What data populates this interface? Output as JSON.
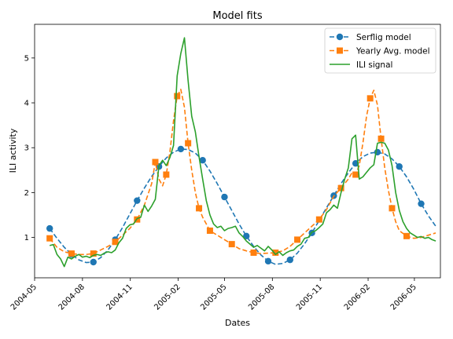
{
  "chart_data": {
    "type": "line",
    "title": "Model fits",
    "xlabel": "Dates",
    "ylabel": "ILI activity",
    "x_ticks": [
      "2004-05",
      "2004-08",
      "2004-11",
      "2005-02",
      "2005-05",
      "2005-08",
      "2005-11",
      "2006-02",
      "2006-05"
    ],
    "x_range": [
      "2004-05-01",
      "2006-06-20"
    ],
    "ylim": [
      0.1,
      5.75
    ],
    "y_ticks": [
      1,
      2,
      3,
      4,
      5
    ],
    "legend_position": "top-right",
    "grid": false,
    "series": [
      {
        "name": "Serflig model",
        "color": "#1f77b4",
        "style": "dashed",
        "marker": "circle",
        "x": [
          "2004-05-30",
          "2004-06-13",
          "2004-06-27",
          "2004-07-11",
          "2004-07-25",
          "2004-08-08",
          "2004-08-22",
          "2004-09-05",
          "2004-09-19",
          "2004-10-03",
          "2004-10-17",
          "2004-10-31",
          "2004-11-14",
          "2004-11-28",
          "2004-12-12",
          "2004-12-26",
          "2005-01-09",
          "2005-01-23",
          "2005-02-06",
          "2005-02-20",
          "2005-03-06",
          "2005-03-20",
          "2005-04-03",
          "2005-04-17",
          "2005-05-01",
          "2005-05-15",
          "2005-05-29",
          "2005-06-12",
          "2005-06-26",
          "2005-07-10",
          "2005-07-24",
          "2005-08-07",
          "2005-08-21",
          "2005-09-04",
          "2005-09-18",
          "2005-10-02",
          "2005-10-16",
          "2005-10-30",
          "2005-11-13",
          "2005-11-27",
          "2005-12-11",
          "2005-12-25",
          "2006-01-08",
          "2006-01-22",
          "2006-02-05",
          "2006-02-19",
          "2006-03-05",
          "2006-03-19",
          "2006-04-02",
          "2006-04-16",
          "2006-04-30",
          "2006-05-14",
          "2006-05-28",
          "2006-06-11"
        ],
        "values": [
          1.2,
          0.98,
          0.78,
          0.62,
          0.5,
          0.44,
          0.45,
          0.55,
          0.72,
          0.95,
          1.22,
          1.52,
          1.82,
          2.1,
          2.36,
          2.58,
          2.77,
          2.9,
          2.97,
          2.96,
          2.88,
          2.72,
          2.48,
          2.2,
          1.9,
          1.6,
          1.3,
          1.03,
          0.8,
          0.61,
          0.47,
          0.4,
          0.42,
          0.5,
          0.65,
          0.86,
          1.1,
          1.38,
          1.66,
          1.93,
          2.2,
          2.44,
          2.65,
          2.8,
          2.88,
          2.9,
          2.86,
          2.75,
          2.58,
          2.35,
          2.07,
          1.75,
          1.48,
          1.25
        ],
        "marker_indices": [
          0,
          3,
          6,
          9,
          12,
          15,
          18,
          21,
          24,
          27,
          30,
          33,
          36,
          39,
          42,
          45,
          48,
          51
        ]
      },
      {
        "name": "Yearly Avg. model",
        "color": "#ff7f0e",
        "style": "dashed",
        "marker": "square",
        "x": [
          "2004-05-30",
          "2004-06-13",
          "2004-06-27",
          "2004-07-11",
          "2004-07-25",
          "2004-08-08",
          "2004-08-22",
          "2004-09-05",
          "2004-09-19",
          "2004-10-03",
          "2004-10-17",
          "2004-10-31",
          "2004-11-14",
          "2004-11-28",
          "2004-12-12",
          "2004-12-19",
          "2004-12-26",
          "2005-01-02",
          "2005-01-09",
          "2005-01-16",
          "2005-01-23",
          "2005-01-30",
          "2005-02-06",
          "2005-02-13",
          "2005-02-20",
          "2005-02-27",
          "2005-03-06",
          "2005-03-13",
          "2005-03-20",
          "2005-03-27",
          "2005-04-03",
          "2005-04-17",
          "2005-05-01",
          "2005-05-15",
          "2005-05-29",
          "2005-06-12",
          "2005-06-26",
          "2005-07-10",
          "2005-07-24",
          "2005-08-07",
          "2005-08-21",
          "2005-09-04",
          "2005-09-18",
          "2005-10-02",
          "2005-10-16",
          "2005-10-30",
          "2005-11-13",
          "2005-11-27",
          "2005-12-11",
          "2005-12-25",
          "2006-01-01",
          "2006-01-08",
          "2006-01-15",
          "2006-01-22",
          "2006-01-29",
          "2006-02-05",
          "2006-02-12",
          "2006-02-19",
          "2006-02-26",
          "2006-03-05",
          "2006-03-12",
          "2006-03-19",
          "2006-03-26",
          "2006-04-02",
          "2006-04-16",
          "2006-04-30",
          "2006-05-14",
          "2006-05-28",
          "2006-06-11"
        ],
        "values": [
          0.98,
          0.78,
          0.68,
          0.64,
          0.62,
          0.62,
          0.64,
          0.72,
          0.8,
          0.9,
          1.05,
          1.2,
          1.4,
          1.72,
          2.2,
          2.68,
          2.3,
          2.15,
          2.4,
          2.9,
          3.6,
          4.15,
          4.3,
          3.9,
          3.1,
          2.5,
          2.0,
          1.65,
          1.45,
          1.3,
          1.15,
          1.05,
          0.95,
          0.85,
          0.75,
          0.7,
          0.66,
          0.64,
          0.65,
          0.66,
          0.7,
          0.8,
          0.95,
          1.1,
          1.25,
          1.4,
          1.62,
          1.92,
          2.1,
          2.3,
          2.44,
          2.4,
          2.6,
          3.1,
          3.7,
          4.1,
          4.28,
          3.95,
          3.2,
          2.55,
          2.05,
          1.65,
          1.35,
          1.15,
          1.03,
          0.98,
          1.0,
          1.05,
          1.1
        ],
        "marker_indices": [
          0,
          3,
          6,
          9,
          12,
          15,
          18,
          21,
          24,
          27,
          30,
          33,
          36,
          39,
          42,
          45,
          48,
          51,
          55,
          58,
          61,
          64
        ]
      },
      {
        "name": "ILI signal",
        "color": "#2ca02c",
        "style": "solid",
        "marker": "none",
        "x": [
          "2004-05-30",
          "2004-06-06",
          "2004-06-13",
          "2004-06-20",
          "2004-06-27",
          "2004-07-04",
          "2004-07-11",
          "2004-07-18",
          "2004-07-25",
          "2004-08-01",
          "2004-08-08",
          "2004-08-15",
          "2004-08-22",
          "2004-08-29",
          "2004-09-05",
          "2004-09-12",
          "2004-09-19",
          "2004-09-26",
          "2004-10-03",
          "2004-10-10",
          "2004-10-17",
          "2004-10-24",
          "2004-10-31",
          "2004-11-07",
          "2004-11-14",
          "2004-11-21",
          "2004-11-28",
          "2004-12-05",
          "2004-12-12",
          "2004-12-19",
          "2004-12-26",
          "2005-01-02",
          "2005-01-09",
          "2005-01-16",
          "2005-01-23",
          "2005-01-30",
          "2005-02-06",
          "2005-02-13",
          "2005-02-20",
          "2005-02-27",
          "2005-03-06",
          "2005-03-13",
          "2005-03-20",
          "2005-03-27",
          "2005-04-03",
          "2005-04-10",
          "2005-04-17",
          "2005-04-24",
          "2005-05-01",
          "2005-05-08",
          "2005-05-15",
          "2005-05-22",
          "2005-05-29",
          "2005-06-05",
          "2005-06-12",
          "2005-06-19",
          "2005-06-26",
          "2005-07-03",
          "2005-07-10",
          "2005-07-17",
          "2005-07-24",
          "2005-07-31",
          "2005-08-07",
          "2005-08-14",
          "2005-08-21",
          "2005-08-28",
          "2005-09-04",
          "2005-09-11",
          "2005-09-18",
          "2005-09-25",
          "2005-10-02",
          "2005-10-09",
          "2005-10-16",
          "2005-10-23",
          "2005-10-30",
          "2005-11-06",
          "2005-11-13",
          "2005-11-20",
          "2005-11-27",
          "2005-12-04",
          "2005-12-11",
          "2005-12-18",
          "2005-12-25",
          "2006-01-01",
          "2006-01-08",
          "2006-01-15",
          "2006-01-22",
          "2006-01-29",
          "2006-02-05",
          "2006-02-12",
          "2006-02-19",
          "2006-02-26",
          "2006-03-05",
          "2006-03-12",
          "2006-03-19",
          "2006-03-26",
          "2006-04-02",
          "2006-04-09",
          "2006-04-16",
          "2006-04-23",
          "2006-04-30",
          "2006-05-07",
          "2006-05-14",
          "2006-05-21",
          "2006-05-28",
          "2006-06-04",
          "2006-06-11"
        ],
        "values": [
          0.82,
          0.84,
          0.62,
          0.52,
          0.35,
          0.56,
          0.52,
          0.58,
          0.62,
          0.56,
          0.58,
          0.55,
          0.6,
          0.62,
          0.6,
          0.65,
          0.68,
          0.66,
          0.72,
          0.88,
          0.98,
          1.2,
          1.28,
          1.3,
          1.42,
          1.45,
          1.72,
          1.58,
          1.7,
          1.85,
          2.6,
          2.72,
          2.6,
          2.78,
          3.05,
          4.6,
          5.1,
          5.45,
          4.5,
          3.7,
          3.35,
          2.8,
          2.3,
          1.82,
          1.5,
          1.3,
          1.22,
          1.25,
          1.15,
          1.2,
          1.22,
          1.25,
          1.1,
          1.02,
          0.92,
          0.85,
          0.78,
          0.82,
          0.76,
          0.7,
          0.8,
          0.72,
          0.62,
          0.68,
          0.6,
          0.66,
          0.7,
          0.72,
          0.8,
          0.85,
          0.98,
          1.0,
          1.12,
          1.15,
          1.22,
          1.3,
          1.55,
          1.62,
          1.72,
          1.65,
          2.0,
          2.3,
          2.55,
          3.2,
          3.28,
          2.3,
          2.35,
          2.45,
          2.55,
          2.62,
          3.1,
          3.12,
          3.1,
          2.95,
          2.6,
          2.0,
          1.6,
          1.35,
          1.2,
          1.1,
          1.05,
          1.0,
          1.02,
          0.98,
          1.0,
          0.95,
          0.92
        ]
      }
    ]
  }
}
